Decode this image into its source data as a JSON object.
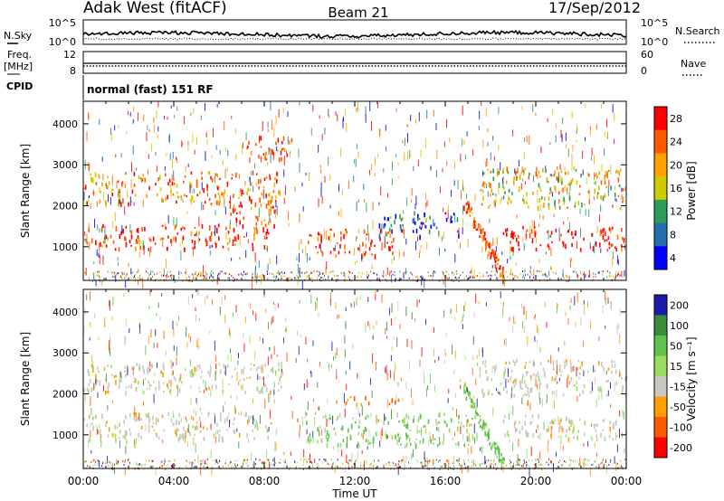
{
  "header": {
    "station": "Adak West (fitACF)",
    "beam": "Beam 21",
    "date": "17/Sep/2012"
  },
  "left_labels": {
    "nsky": "N.Sky",
    "freq": "Freq.",
    "freq_unit": "[MHz]",
    "cpid": "CPID"
  },
  "right_labels": {
    "nsearch": "N.Search",
    "nave": "Nave"
  },
  "cpid_text": "normal (fast) 151 RF",
  "noise_panel": {
    "left_ticks": [
      "10^5",
      "10^0"
    ],
    "right_ticks": [
      "10^5",
      "10^0"
    ]
  },
  "freq_panel": {
    "left_ticks": [
      "12",
      "8"
    ],
    "right_ticks": [
      "60",
      "0"
    ]
  },
  "chart_data": [
    {
      "type": "heatmap",
      "title": "",
      "xlabel": "",
      "ylabel": "Slant Range [km]",
      "xlim": [
        0,
        24
      ],
      "ylim": [
        180,
        4550
      ],
      "x_ticks": [
        0,
        4,
        8,
        12,
        16,
        20,
        24
      ],
      "y_ticks": [
        1000,
        2000,
        3000,
        4000
      ],
      "y_tick_labels": [
        "1000",
        "2000",
        "3000",
        "4000"
      ],
      "colorbar": {
        "label": "Power [dB]",
        "ticks": [
          "28",
          "24",
          "20",
          "16",
          "12",
          "8",
          "4"
        ],
        "colors": [
          "#ff0000",
          "#ff5a00",
          "#ffa000",
          "#cccc00",
          "#2f9c5a",
          "#256fb0",
          "#0000ff"
        ]
      },
      "echo_regions": [
        {
          "name": "main band",
          "t_start": 0.0,
          "t_end": 8.3,
          "r_low": 900,
          "r_high": 1500,
          "power_db": 27
        },
        {
          "name": "main band rise",
          "t_start": 6.3,
          "t_end": 8.5,
          "r_low": 1400,
          "r_high": 2100,
          "power_db": 24
        },
        {
          "name": "upper band",
          "t_start": 0.0,
          "t_end": 8.8,
          "r_low": 2000,
          "r_high": 2800,
          "power_db": 22
        },
        {
          "name": "upper patch",
          "t_start": 7.0,
          "t_end": 9.2,
          "r_low": 3100,
          "r_high": 3700,
          "power_db": 22
        },
        {
          "name": "midday band",
          "t_start": 9.8,
          "t_end": 13.8,
          "r_low": 750,
          "r_high": 1400,
          "power_db": 27
        },
        {
          "name": "afternoon edge",
          "t_start": 13.0,
          "t_end": 16.6,
          "r_low": 1200,
          "r_high": 1800,
          "power_db": 8
        },
        {
          "name": "diagonal",
          "t_start": 16.8,
          "t_end": 18.6,
          "r_low": 200,
          "r_high": 2100,
          "power_db": 25
        },
        {
          "name": "late band",
          "t_start": 18.5,
          "t_end": 24.0,
          "r_low": 850,
          "r_high": 1450,
          "power_db": 27
        },
        {
          "name": "late upper band",
          "t_start": 17.5,
          "t_end": 24.0,
          "r_low": 1900,
          "r_high": 2900,
          "power_db": 18
        }
      ]
    },
    {
      "type": "heatmap",
      "title": "",
      "xlabel": "Time UT",
      "ylabel": "Slant Range [km]",
      "xlim": [
        0,
        24
      ],
      "ylim": [
        180,
        4550
      ],
      "x_ticks": [
        0,
        4,
        8,
        12,
        16,
        20,
        24
      ],
      "x_tick_labels": [
        "00:00",
        "04:00",
        "08:00",
        "12:00",
        "16:00",
        "20:00",
        "00:00"
      ],
      "y_ticks": [
        1000,
        2000,
        3000,
        4000
      ],
      "y_tick_labels": [
        "1000",
        "2000",
        "3000",
        "4000"
      ],
      "colorbar": {
        "label": "Velocity [m s⁻¹]",
        "ticks": [
          "200",
          "100",
          "50",
          "15",
          "-15",
          "-50",
          "-100",
          "-200"
        ],
        "colors": [
          "#1a1aa6",
          "#3a8c3a",
          "#5fc24f",
          "#9ade60",
          "#c8c8c0",
          "#ffa000",
          "#ff5a00",
          "#ff0000"
        ]
      },
      "echo_regions": [
        {
          "name": "ground scatter band",
          "t_start": 0.0,
          "t_end": 8.3,
          "r_low": 850,
          "r_high": 1500,
          "velocity": 0
        },
        {
          "name": "ground scatter upper",
          "t_start": 0.0,
          "t_end": 8.8,
          "r_low": 2000,
          "r_high": 2700,
          "velocity": 0
        },
        {
          "name": "midday green",
          "t_start": 9.8,
          "t_end": 17.2,
          "r_low": 700,
          "r_high": 1500,
          "velocity": 30
        },
        {
          "name": "midday orange",
          "t_start": 11.0,
          "t_end": 14.0,
          "r_low": 1700,
          "r_high": 1900,
          "velocity": -60
        },
        {
          "name": "diagonal",
          "t_start": 16.8,
          "t_end": 18.6,
          "r_low": 200,
          "r_high": 2100,
          "velocity": 40
        },
        {
          "name": "late gray band",
          "t_start": 18.5,
          "t_end": 24.0,
          "r_low": 850,
          "r_high": 1450,
          "velocity": 0
        },
        {
          "name": "late upper gray",
          "t_start": 17.5,
          "t_end": 24.0,
          "r_low": 1900,
          "r_high": 2800,
          "velocity": 0
        }
      ]
    }
  ]
}
